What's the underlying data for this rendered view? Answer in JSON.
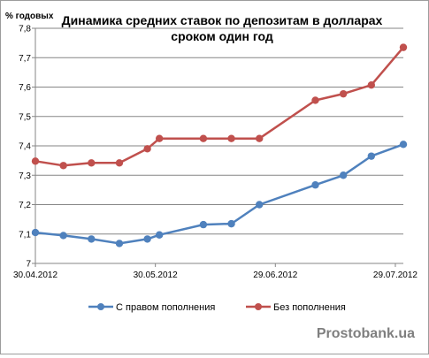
{
  "chart_data": {
    "type": "line",
    "title_line1": "Динамика средних ставок по депозитам в долларах",
    "title_line2": "сроком один год",
    "ylabel": "% годовых",
    "ylim": [
      7,
      7.8
    ],
    "ytick_step": 0.1,
    "yticks": [
      "7",
      "7,1",
      "7,2",
      "7,3",
      "7,4",
      "7,5",
      "7,6",
      "7,7",
      "7,8"
    ],
    "xlim": [
      "2012-04-30",
      "2012-07-31"
    ],
    "xticks": [
      {
        "date": "2012-04-30",
        "label": "30.04.2012"
      },
      {
        "date": "2012-05-30",
        "label": "30.05.2012"
      },
      {
        "date": "2012-06-29",
        "label": "29.06.2012"
      },
      {
        "date": "2012-07-29",
        "label": "29.07.2012"
      }
    ],
    "grid": true,
    "legend_position": "bottom",
    "series": [
      {
        "name": "С правом пополнения",
        "color": "#4f81bd",
        "points": [
          {
            "x": "2012-04-30",
            "y": 7.105
          },
          {
            "x": "2012-05-07",
            "y": 7.095
          },
          {
            "x": "2012-05-14",
            "y": 7.083
          },
          {
            "x": "2012-05-21",
            "y": 7.068
          },
          {
            "x": "2012-05-28",
            "y": 7.083
          },
          {
            "x": "2012-05-31",
            "y": 7.097
          },
          {
            "x": "2012-06-11",
            "y": 7.132
          },
          {
            "x": "2012-06-18",
            "y": 7.135
          },
          {
            "x": "2012-06-25",
            "y": 7.2
          },
          {
            "x": "2012-07-09",
            "y": 7.267
          },
          {
            "x": "2012-07-16",
            "y": 7.3
          },
          {
            "x": "2012-07-23",
            "y": 7.365
          },
          {
            "x": "2012-07-31",
            "y": 7.405
          }
        ]
      },
      {
        "name": "Без пополнения",
        "color": "#c0504d",
        "points": [
          {
            "x": "2012-04-30",
            "y": 7.348
          },
          {
            "x": "2012-05-07",
            "y": 7.333
          },
          {
            "x": "2012-05-14",
            "y": 7.342
          },
          {
            "x": "2012-05-21",
            "y": 7.342
          },
          {
            "x": "2012-05-28",
            "y": 7.39
          },
          {
            "x": "2012-05-31",
            "y": 7.425
          },
          {
            "x": "2012-06-11",
            "y": 7.425
          },
          {
            "x": "2012-06-18",
            "y": 7.425
          },
          {
            "x": "2012-06-25",
            "y": 7.425
          },
          {
            "x": "2012-07-09",
            "y": 7.555
          },
          {
            "x": "2012-07-16",
            "y": 7.577
          },
          {
            "x": "2012-07-23",
            "y": 7.607
          },
          {
            "x": "2012-07-31",
            "y": 7.735
          }
        ]
      }
    ]
  },
  "watermark": "Prostobank.ua"
}
